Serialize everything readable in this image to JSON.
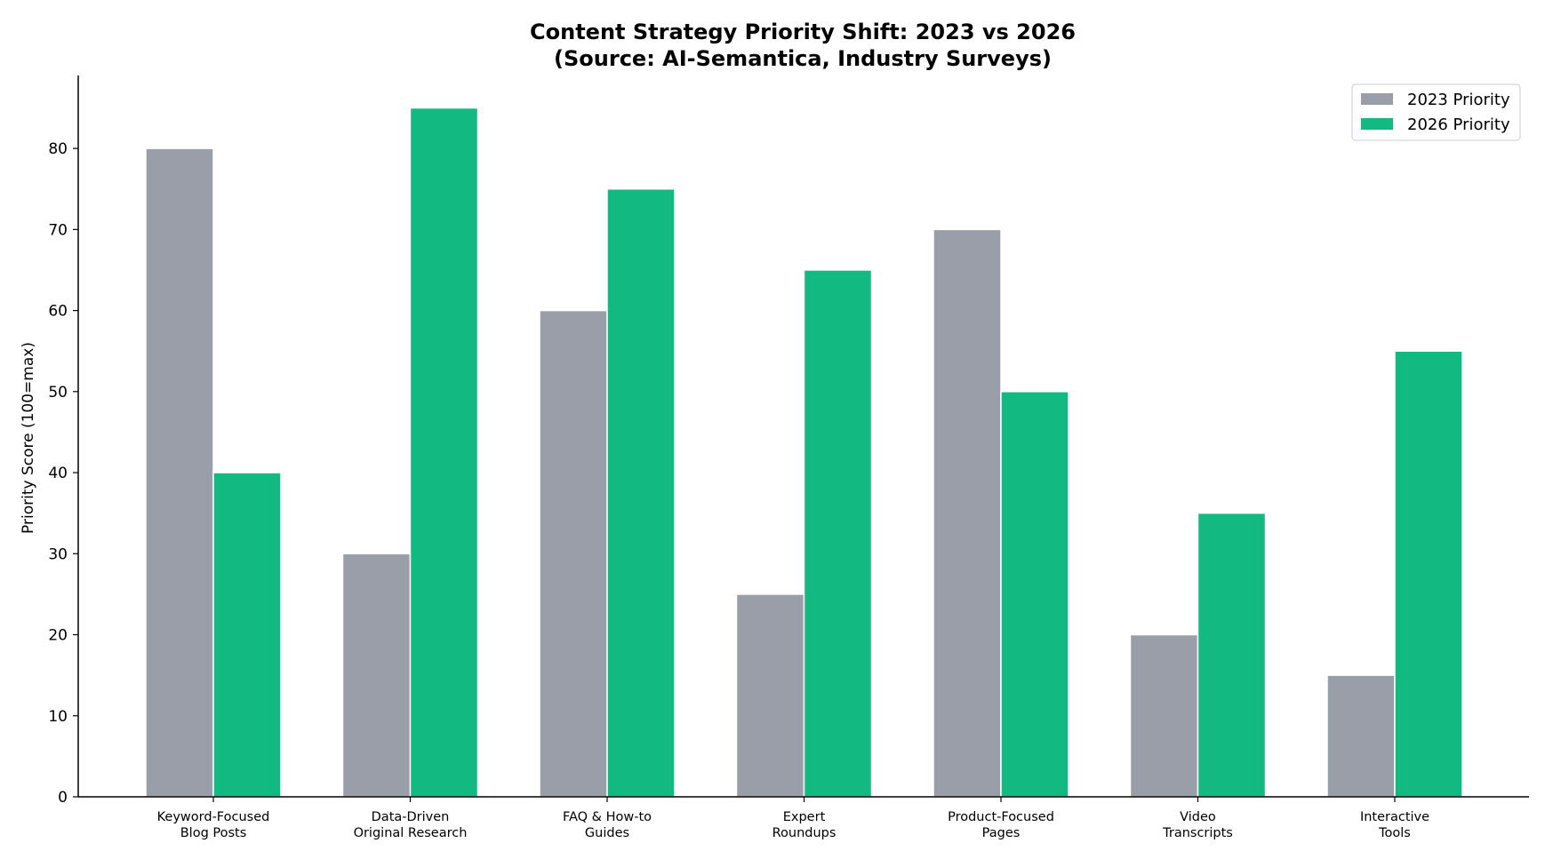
{
  "chart_data": {
    "type": "bar",
    "title": "Content Strategy Priority Shift: 2023 vs 2026",
    "subtitle": "(Source: AI-Semantica, Industry Surveys)",
    "xlabel": "",
    "ylabel": "Priority Score (100=max)",
    "ylim": [
      0,
      89
    ],
    "yticks": [
      "0",
      "10",
      "20",
      "30",
      "40",
      "50",
      "60",
      "70",
      "80"
    ],
    "grid": false,
    "legend_position": "top-right",
    "categories": [
      [
        "Keyword-Focused",
        "Blog Posts"
      ],
      [
        "Data-Driven",
        "Original Research"
      ],
      [
        "FAQ & How-to",
        "Guides"
      ],
      [
        "Expert",
        "Roundups"
      ],
      [
        "Product-Focused",
        "Pages"
      ],
      [
        "Video",
        "Transcripts"
      ],
      [
        "Interactive",
        "Tools"
      ]
    ],
    "series": [
      {
        "name": "2023 Priority",
        "color": "#9a9ea8",
        "values": [
          80,
          30,
          60,
          25,
          70,
          20,
          15
        ]
      },
      {
        "name": "2026 Priority",
        "color": "#12b981",
        "values": [
          40,
          85,
          75,
          65,
          50,
          35,
          55
        ]
      }
    ]
  }
}
